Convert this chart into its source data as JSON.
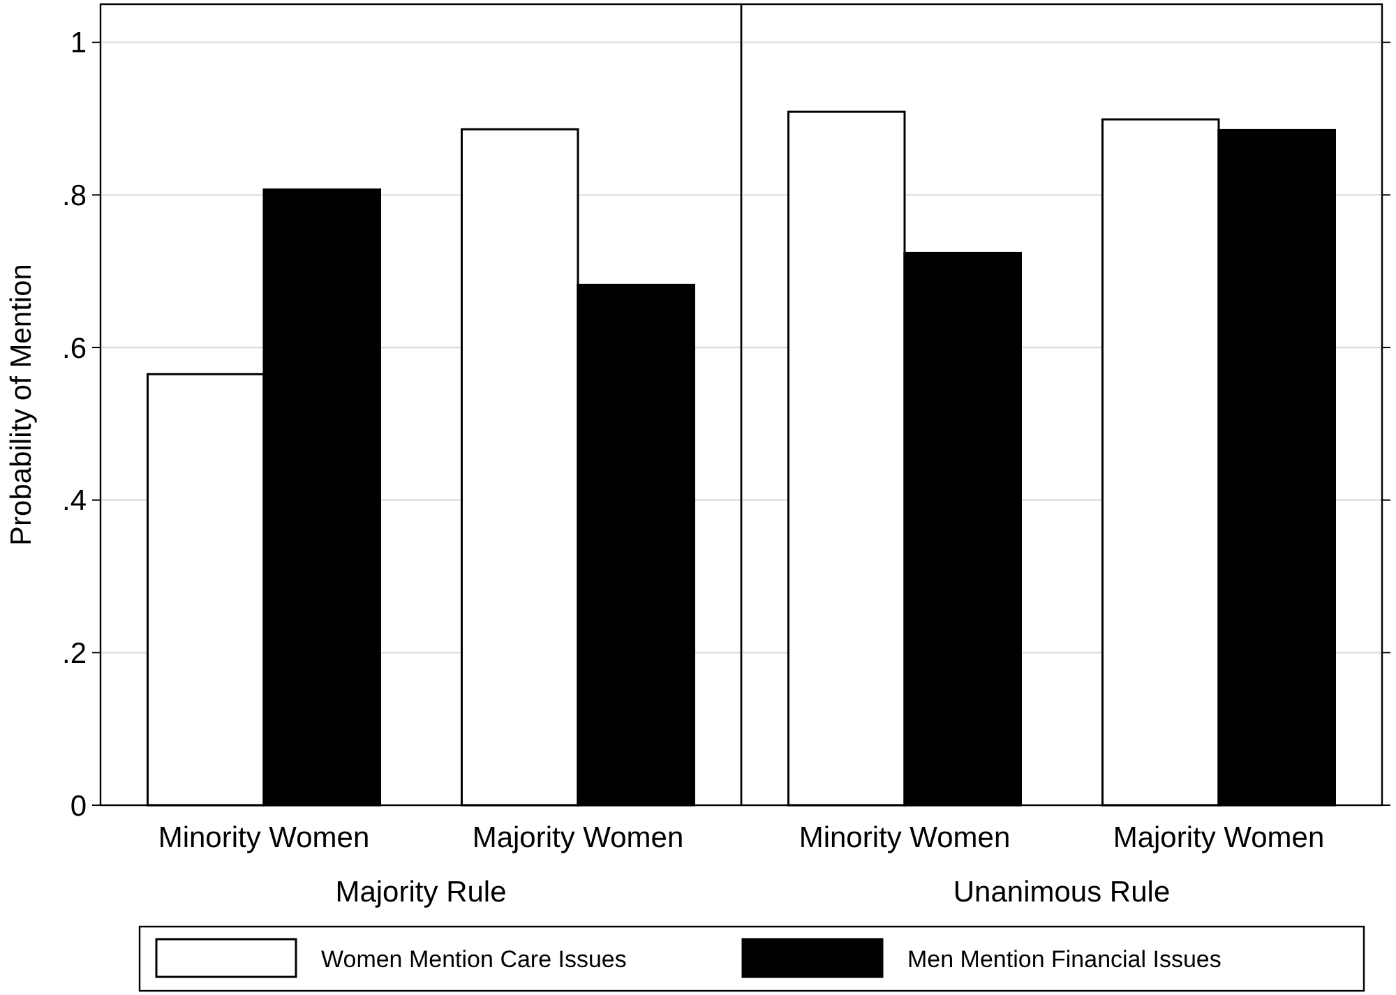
{
  "chart_data": [
    {
      "type": "bar",
      "xlabel": "Majority Rule",
      "ylabel": "Probability of Mention",
      "categories": [
        "Minority Women",
        "Majority Women"
      ],
      "series": [
        {
          "name": "Women Mention Care Issues",
          "color": "#ffffff",
          "values": [
            0.565,
            0.886
          ]
        },
        {
          "color": "#000000",
          "values": [
            0.807,
            0.682
          ]
        }
      ],
      "ylim": [
        0,
        1.05
      ],
      "yticks": [
        0,
        {
          "value": 0.2,
          "label": ".2"
        },
        {
          "value": 0.4,
          "label": ".4"
        },
        {
          "value": 0.6,
          "label": ".6"
        },
        {
          "value": 0.8,
          "label": ".8"
        },
        1
      ],
      "grid": "y",
      "legend": "bottom"
    },
    {
      "type": "bar",
      "xlabel": "Unanimous Rule",
      "categories": [
        "Minority Women",
        "Majority Women"
      ],
      "series": [
        {
          "color": "#ffffff",
          "values": [
            0.909,
            0.899
          ]
        },
        {
          "name": "Men Mention Financial Issues",
          "color": "#000000",
          "values": [
            0.724,
            0.885
          ]
        }
      ],
      "ylim": [
        0,
        1.05
      ],
      "yticks": [
        {
          "value": 0,
          "label": null
        },
        {
          "value": 0.2,
          "label": null
        },
        {
          "value": 0.4,
          "label": null
        },
        {
          "value": 0.6,
          "label": null
        },
        {
          "value": 0.8,
          "label": null
        },
        {
          "value": 1,
          "label": null
        }
      ],
      "grid": "y",
      "tick_labels": "x",
      "legend": "bottom"
    }
  ]
}
